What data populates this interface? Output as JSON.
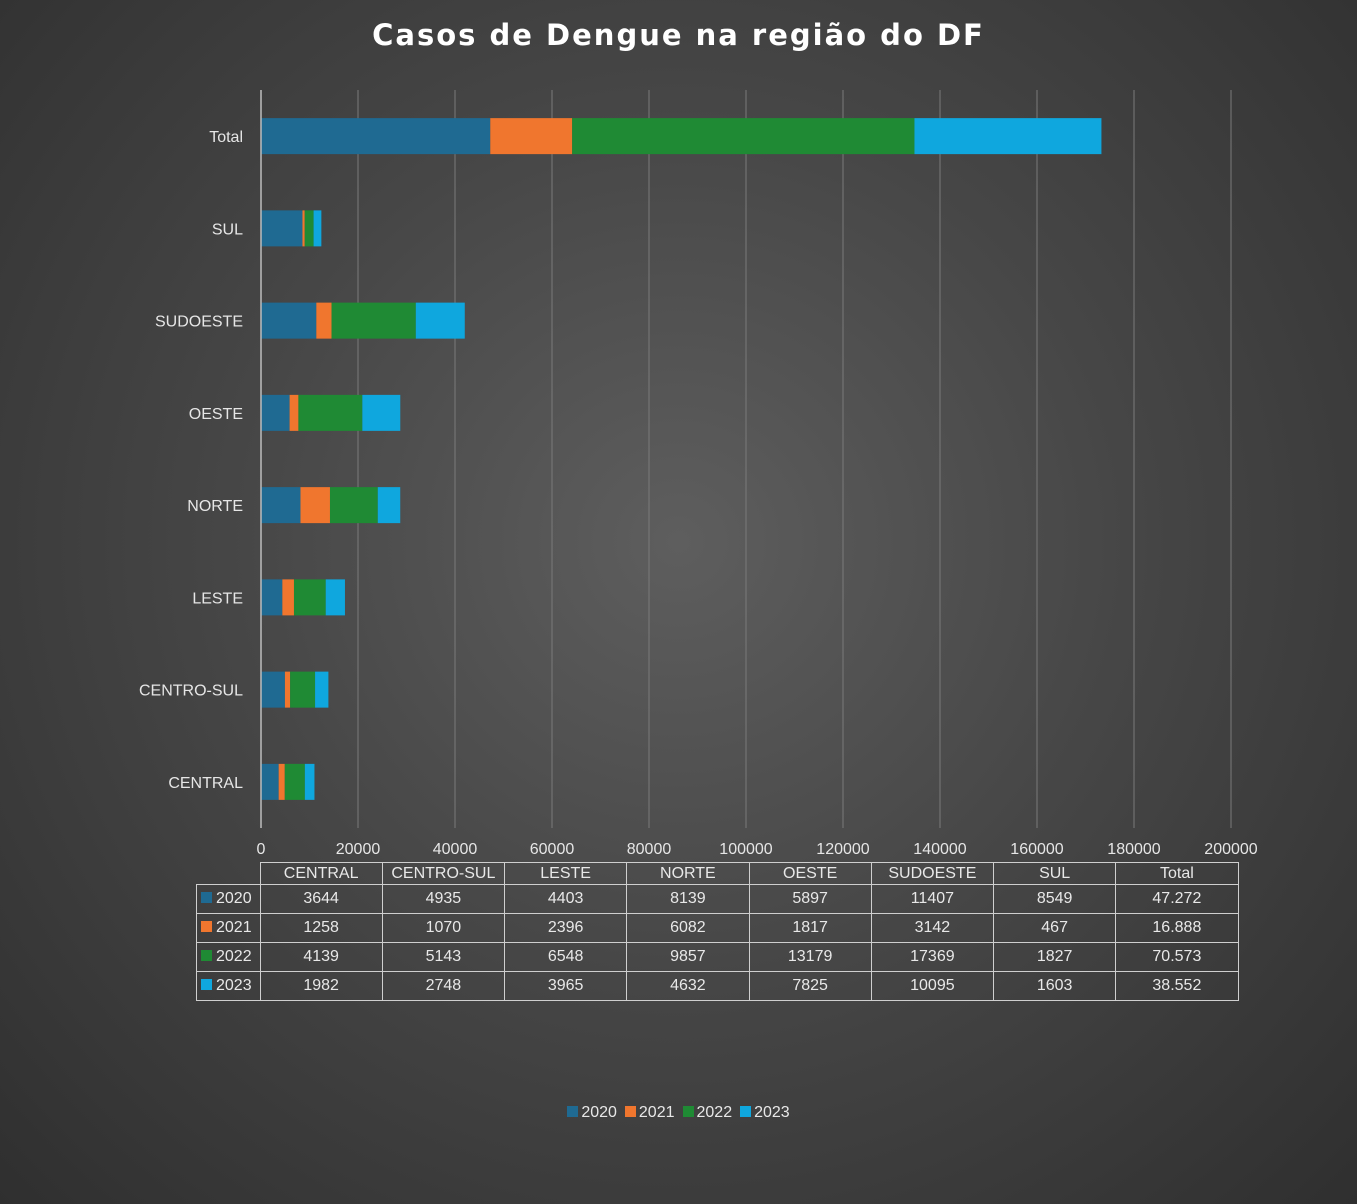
{
  "chart_data": {
    "type": "bar",
    "orientation": "horizontal",
    "stacked": true,
    "title": "Casos de Dengue na região do DF",
    "categories": [
      "CENTRAL",
      "CENTRO-SUL",
      "LESTE",
      "NORTE",
      "OESTE",
      "SUDOESTE",
      "SUL",
      "Total"
    ],
    "series": [
      {
        "name": "2020",
        "color": "#1f6a92",
        "values": [
          3644,
          4935,
          4403,
          8139,
          5897,
          11407,
          8549,
          47272
        ],
        "display": [
          "3644",
          "4935",
          "4403",
          "8139",
          "5897",
          "11407",
          "8549",
          "47.272"
        ]
      },
      {
        "name": "2021",
        "color": "#f0762e",
        "values": [
          1258,
          1070,
          2396,
          6082,
          1817,
          3142,
          467,
          16888
        ],
        "display": [
          "1258",
          "1070",
          "2396",
          "6082",
          "1817",
          "3142",
          "467",
          "16.888"
        ]
      },
      {
        "name": "2022",
        "color": "#1f8a34",
        "values": [
          4139,
          5143,
          6548,
          9857,
          13179,
          17369,
          1827,
          70573
        ],
        "display": [
          "4139",
          "5143",
          "6548",
          "9857",
          "13179",
          "17369",
          "1827",
          "70.573"
        ]
      },
      {
        "name": "2023",
        "color": "#0fa7de",
        "values": [
          1982,
          2748,
          3965,
          4632,
          7825,
          10095,
          1603,
          38552
        ],
        "display": [
          "1982",
          "2748",
          "3965",
          "4632",
          "7825",
          "10095",
          "1603",
          "38.552"
        ]
      }
    ],
    "xlim": [
      0,
      200000
    ],
    "xticks": [
      "0",
      "20000",
      "40000",
      "60000",
      "80000",
      "100000",
      "120000",
      "140000",
      "160000",
      "180000",
      "200000"
    ],
    "grid": true,
    "data_table": true,
    "legend": "bottom"
  }
}
